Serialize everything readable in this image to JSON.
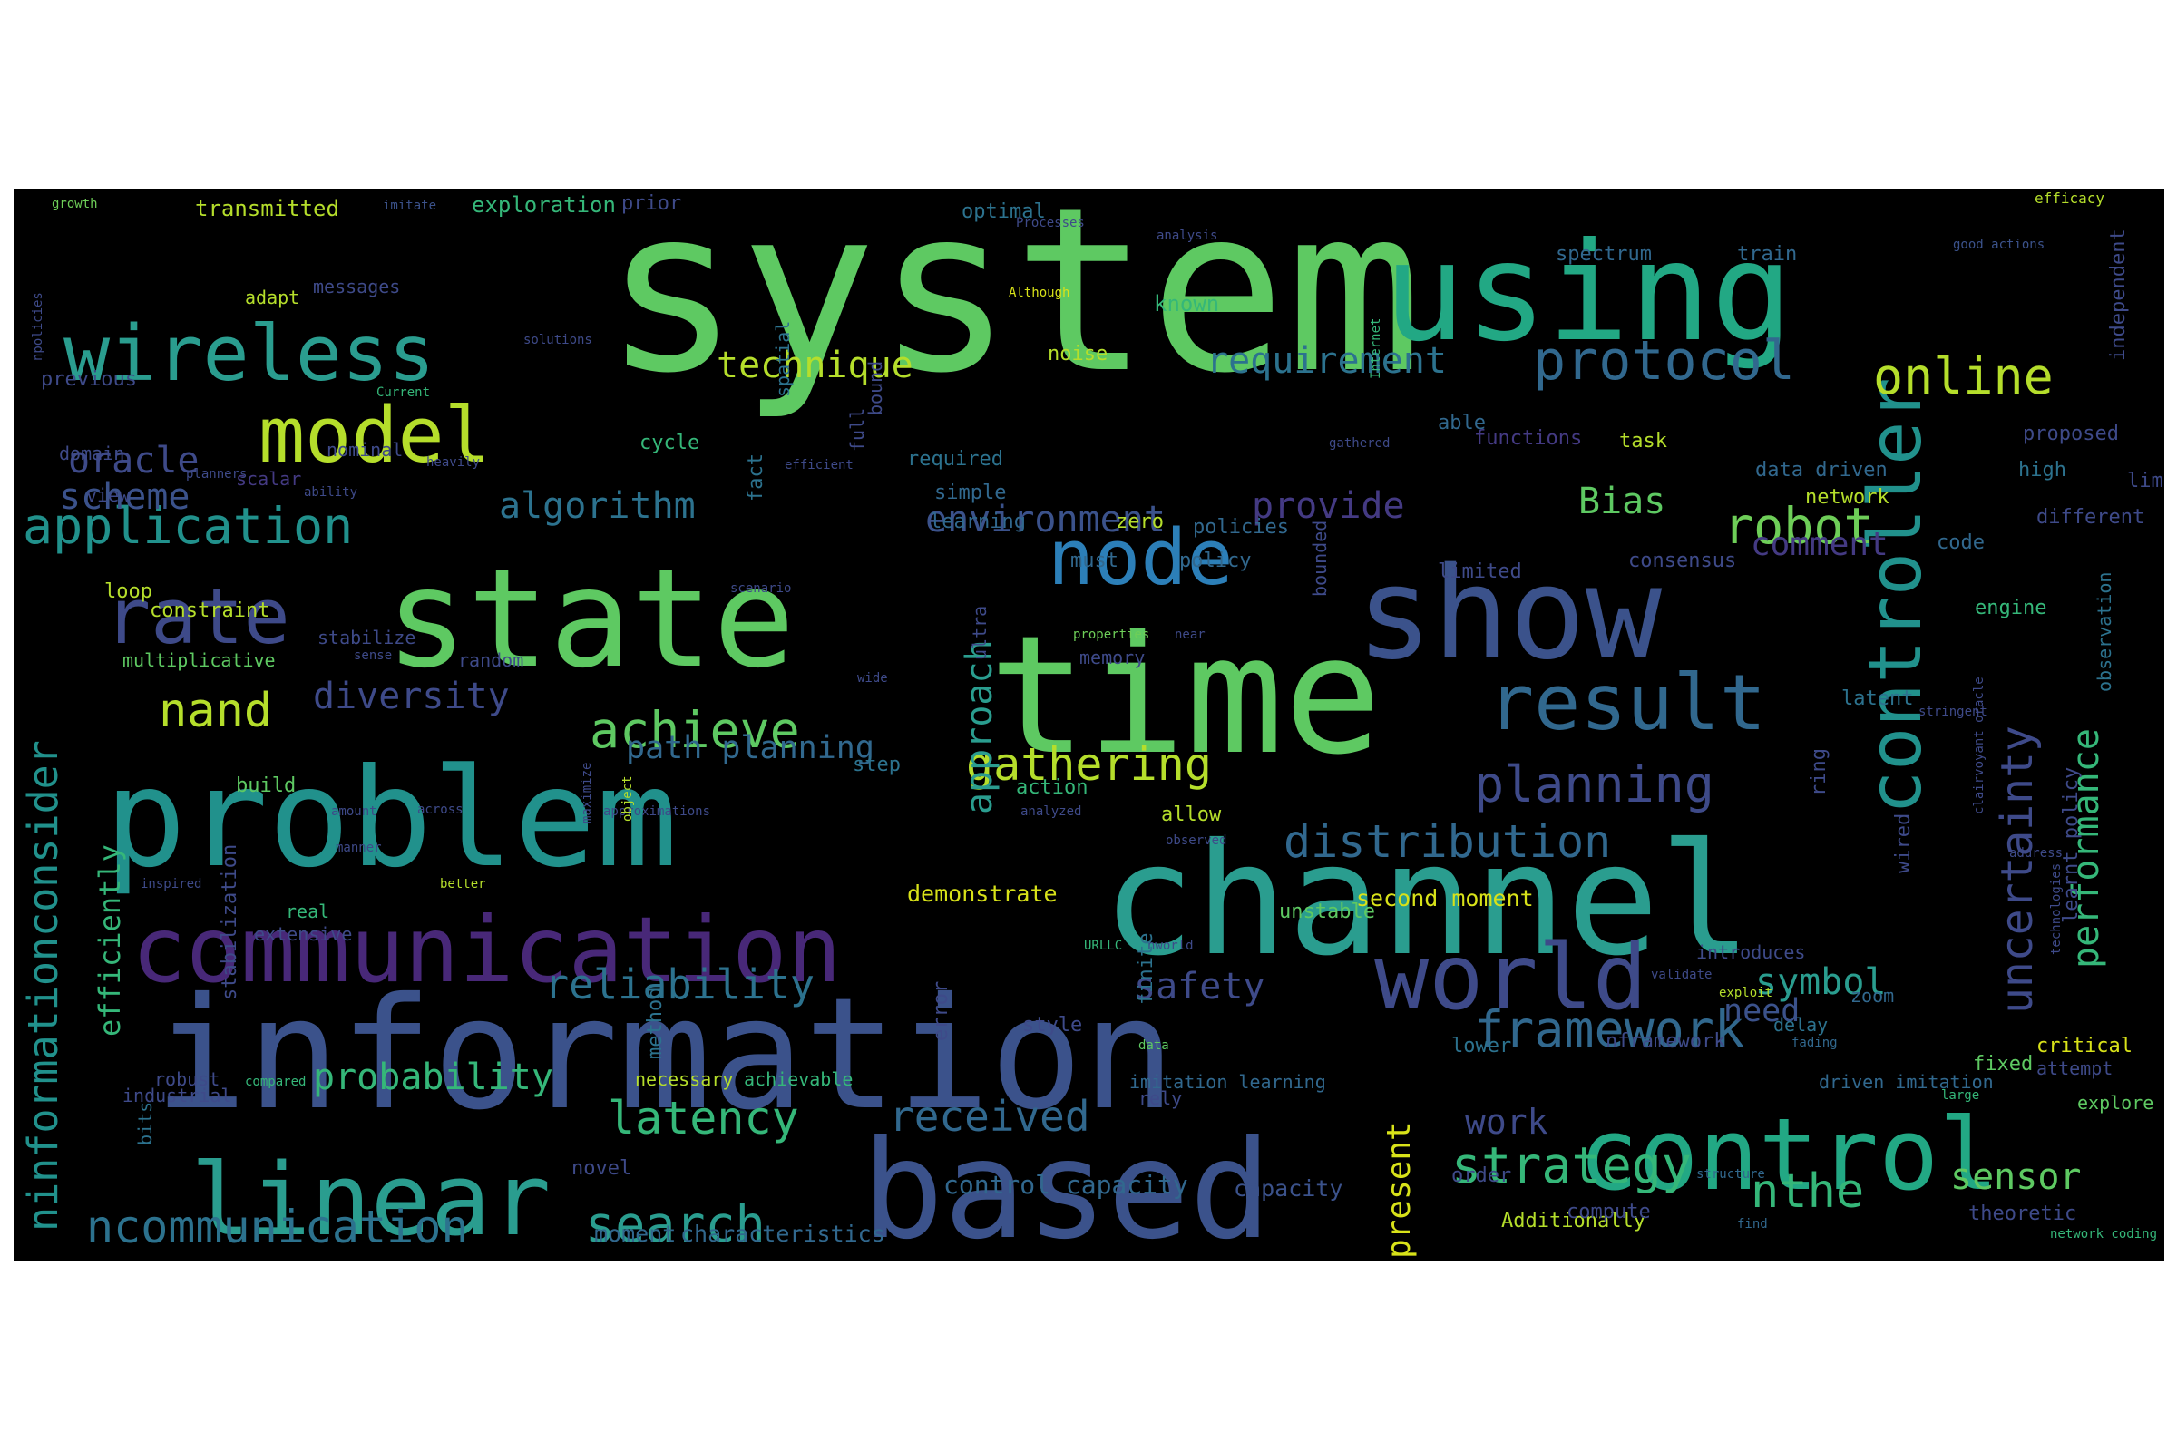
{
  "wordcloud": {
    "words": [
      {
        "text": "system",
        "color": "#5ec962"
      },
      {
        "text": "using",
        "color": "#22a884"
      },
      {
        "text": "information",
        "color": "#3b528b"
      },
      {
        "text": "time",
        "color": "#5ec962"
      },
      {
        "text": "problem",
        "color": "#21918c"
      },
      {
        "text": "channel",
        "color": "#2a9d8f"
      },
      {
        "text": "state",
        "color": "#5ec962"
      },
      {
        "text": "show",
        "color": "#3b528b"
      },
      {
        "text": "based",
        "color": "#3b528b"
      },
      {
        "text": "communication",
        "color": "#482878"
      },
      {
        "text": "linear",
        "color": "#2a9d8f"
      },
      {
        "text": "control",
        "color": "#22a884"
      },
      {
        "text": "world",
        "color": "#3e4a89"
      },
      {
        "text": "model",
        "color": "#b5de2b"
      },
      {
        "text": "wireless",
        "color": "#2a9d8f"
      },
      {
        "text": "rate",
        "color": "#3e4a89"
      },
      {
        "text": "node",
        "color": "#2c7fb8"
      },
      {
        "text": "result",
        "color": "#31688e"
      },
      {
        "text": "controller",
        "color": "#21918c"
      },
      {
        "text": "protocol",
        "color": "#31688e"
      },
      {
        "text": "online",
        "color": "#b5de2b"
      },
      {
        "text": "application",
        "color": "#21918c"
      },
      {
        "text": "planning",
        "color": "#3e4a89"
      },
      {
        "text": "distribution",
        "color": "#31688e"
      },
      {
        "text": "framework",
        "color": "#31688e"
      },
      {
        "text": "strategy",
        "color": "#35b779"
      },
      {
        "text": "achieve",
        "color": "#5ec962"
      },
      {
        "text": "nand",
        "color": "#b5de2b"
      },
      {
        "text": "search",
        "color": "#2a9d8f"
      },
      {
        "text": "latency",
        "color": "#35b779"
      },
      {
        "text": "ncommunication",
        "color": "#2c728e"
      },
      {
        "text": "ninformationconsider",
        "color": "#21918c"
      },
      {
        "text": "uncertainty",
        "color": "#3e4a89"
      },
      {
        "text": "performance",
        "color": "#35b779"
      },
      {
        "text": "received",
        "color": "#31688e"
      },
      {
        "text": "robot",
        "color": "#6ece58"
      },
      {
        "text": "nthe",
        "color": "#35b779"
      },
      {
        "text": "sensor",
        "color": "#5ec962"
      },
      {
        "text": "reliability",
        "color": "#2c728e"
      },
      {
        "text": "probability",
        "color": "#35b779"
      },
      {
        "text": "algorithm",
        "color": "#2c728e"
      },
      {
        "text": "environment",
        "color": "#3b528b"
      },
      {
        "text": "provide",
        "color": "#443a83"
      },
      {
        "text": "Bias",
        "color": "#5ec962"
      },
      {
        "text": "requirement",
        "color": "#2c728e"
      },
      {
        "text": "technique",
        "color": "#b5de2b"
      },
      {
        "text": "oracle",
        "color": "#3e4a89"
      },
      {
        "text": "scheme",
        "color": "#3b528b"
      },
      {
        "text": "diversity",
        "color": "#3e4a89"
      },
      {
        "text": "gathering",
        "color": "#b5de2b"
      },
      {
        "text": "approach",
        "color": "#2a9d8f"
      },
      {
        "text": "path planning",
        "color": "#31688e"
      },
      {
        "text": "safety",
        "color": "#3e4a89"
      },
      {
        "text": "symbol",
        "color": "#2a9d8f"
      },
      {
        "text": "need",
        "color": "#3b528b"
      },
      {
        "text": "work",
        "color": "#3e4a89"
      },
      {
        "text": "present",
        "color": "#d8e219"
      },
      {
        "text": "efficiently",
        "color": "#35b779"
      },
      {
        "text": "comment",
        "color": "#443a83"
      },
      {
        "text": "second moment",
        "color": "#d8e219"
      },
      {
        "text": "demonstrate",
        "color": "#d8e219"
      },
      {
        "text": "control capacity",
        "color": "#31688e"
      },
      {
        "text": "capacity",
        "color": "#3b528b"
      },
      {
        "text": "moment",
        "color": "#31688e"
      },
      {
        "text": "characteristics",
        "color": "#31688e"
      },
      {
        "text": "transmitted",
        "color": "#b5de2b"
      },
      {
        "text": "exploration",
        "color": "#35b779"
      },
      {
        "text": "prior",
        "color": "#3e4a89"
      },
      {
        "text": "optimal",
        "color": "#2c728e"
      },
      {
        "text": "spectrum",
        "color": "#31688e"
      },
      {
        "text": "train",
        "color": "#31688e"
      },
      {
        "text": "efficacy",
        "color": "#b5de2b"
      },
      {
        "text": "growth",
        "color": "#6ece58"
      },
      {
        "text": "imitate",
        "color": "#3b528b"
      },
      {
        "text": "Processes",
        "color": "#3e4a89"
      },
      {
        "text": "analysis",
        "color": "#3e4a89"
      },
      {
        "text": "good actions",
        "color": "#3b528b"
      },
      {
        "text": "adapt",
        "color": "#b5de2b"
      },
      {
        "text": "messages",
        "color": "#3e4a89"
      },
      {
        "text": "Although",
        "color": "#d8e219"
      },
      {
        "text": "known",
        "color": "#35b779"
      },
      {
        "text": "independent",
        "color": "#3e4a89"
      },
      {
        "text": "solutions",
        "color": "#3e4a89"
      },
      {
        "text": "noise",
        "color": "#b5de2b"
      },
      {
        "text": "previous",
        "color": "#3e4a89"
      },
      {
        "text": "Current",
        "color": "#35b779"
      },
      {
        "text": "nominal",
        "color": "#3e4a89"
      },
      {
        "text": "heavily",
        "color": "#3e4a89"
      },
      {
        "text": "domain",
        "color": "#3e4a89"
      },
      {
        "text": "cycle",
        "color": "#35b779"
      },
      {
        "text": "efficient",
        "color": "#3e4a89"
      },
      {
        "text": "required",
        "color": "#2c728e"
      },
      {
        "text": "gathered",
        "color": "#3e4a89"
      },
      {
        "text": "able",
        "color": "#31688e"
      },
      {
        "text": "functions",
        "color": "#443a83"
      },
      {
        "text": "task",
        "color": "#b5de2b"
      },
      {
        "text": "proposed",
        "color": "#3e4a89"
      },
      {
        "text": "data driven",
        "color": "#31688e"
      },
      {
        "text": "high",
        "color": "#2c728e"
      },
      {
        "text": "limit",
        "color": "#3e4a89"
      },
      {
        "text": "network",
        "color": "#b5de2b"
      },
      {
        "text": "different",
        "color": "#3e4a89"
      },
      {
        "text": "planners",
        "color": "#3e4a89"
      },
      {
        "text": "scalar",
        "color": "#443a83"
      },
      {
        "text": "ability",
        "color": "#3e4a89"
      },
      {
        "text": "view",
        "color": "#3e4a89"
      },
      {
        "text": "simple",
        "color": "#31688e"
      },
      {
        "text": "learning",
        "color": "#31688e"
      },
      {
        "text": "zero",
        "color": "#b5de2b"
      },
      {
        "text": "policies",
        "color": "#31688e"
      },
      {
        "text": "code",
        "color": "#31688e"
      },
      {
        "text": "must",
        "color": "#31688e"
      },
      {
        "text": "policy",
        "color": "#31688e"
      },
      {
        "text": "limited",
        "color": "#3e4a89"
      },
      {
        "text": "consensus",
        "color": "#3e4a89"
      },
      {
        "text": "loop",
        "color": "#b5de2b"
      },
      {
        "text": "constraint",
        "color": "#b5de2b"
      },
      {
        "text": "scenario",
        "color": "#3e4a89"
      },
      {
        "text": "engine",
        "color": "#35b779"
      },
      {
        "text": "stabilize",
        "color": "#3e4a89"
      },
      {
        "text": "properties",
        "color": "#6ece58"
      },
      {
        "text": "near",
        "color": "#3e4a89"
      },
      {
        "text": "memory",
        "color": "#3e4a89"
      },
      {
        "text": "multiplicative",
        "color": "#5ec962"
      },
      {
        "text": "random",
        "color": "#3e4a89"
      },
      {
        "text": "sense",
        "color": "#3e4a89"
      },
      {
        "text": "wide",
        "color": "#3e4a89"
      },
      {
        "text": "latent",
        "color": "#2c728e"
      },
      {
        "text": "stringent",
        "color": "#3e4a89"
      },
      {
        "text": "step",
        "color": "#2c728e"
      },
      {
        "text": "action",
        "color": "#35b779"
      },
      {
        "text": "build",
        "color": "#5ec962"
      },
      {
        "text": "amount",
        "color": "#3e4a89"
      },
      {
        "text": "across",
        "color": "#3e4a89"
      },
      {
        "text": "approximations",
        "color": "#3e4a89"
      },
      {
        "text": "analyzed",
        "color": "#3e4a89"
      },
      {
        "text": "allow",
        "color": "#b5de2b"
      },
      {
        "text": "observed",
        "color": "#3e4a89"
      },
      {
        "text": "manner",
        "color": "#3e4a89"
      },
      {
        "text": "address",
        "color": "#3e4a89"
      },
      {
        "text": "technologies",
        "color": "#3e4a89"
      },
      {
        "text": "inspired",
        "color": "#3e4a89"
      },
      {
        "text": "better",
        "color": "#b5de2b"
      },
      {
        "text": "real",
        "color": "#35b779"
      },
      {
        "text": "unstable",
        "color": "#5ec962"
      },
      {
        "text": "extensive",
        "color": "#3e4a89"
      },
      {
        "text": "nworld",
        "color": "#3e4a89"
      },
      {
        "text": "URLLC",
        "color": "#35b779"
      },
      {
        "text": "introduces",
        "color": "#3e4a89"
      },
      {
        "text": "validate",
        "color": "#3e4a89"
      },
      {
        "text": "exploit",
        "color": "#b5de2b"
      },
      {
        "text": "zoom",
        "color": "#31688e"
      },
      {
        "text": "delay",
        "color": "#2c728e"
      },
      {
        "text": "style",
        "color": "#3e4a89"
      },
      {
        "text": "nframework",
        "color": "#3e4a89"
      },
      {
        "text": "fading",
        "color": "#31688e"
      },
      {
        "text": "data",
        "color": "#5ec962"
      },
      {
        "text": "lower",
        "color": "#2c728e"
      },
      {
        "text": "critical",
        "color": "#d8e219"
      },
      {
        "text": "fixed",
        "color": "#5ec962"
      },
      {
        "text": "attempt",
        "color": "#3e4a89"
      },
      {
        "text": "robust",
        "color": "#3e4a89"
      },
      {
        "text": "compared",
        "color": "#35b779"
      },
      {
        "text": "necessary",
        "color": "#b5de2b"
      },
      {
        "text": "achievable",
        "color": "#35b779"
      },
      {
        "text": "imitation learning",
        "color": "#31688e"
      },
      {
        "text": "rely",
        "color": "#3e4a89"
      },
      {
        "text": "driven imitation",
        "color": "#31688e"
      },
      {
        "text": "large",
        "color": "#35b779"
      },
      {
        "text": "industrial",
        "color": "#3e4a89"
      },
      {
        "text": "explore",
        "color": "#5ec962"
      },
      {
        "text": "novel",
        "color": "#3e4a89"
      },
      {
        "text": "order",
        "color": "#3e4a89"
      },
      {
        "text": "structure",
        "color": "#31688e"
      },
      {
        "text": "Additionally",
        "color": "#b5de2b"
      },
      {
        "text": "compute",
        "color": "#3e4a89"
      },
      {
        "text": "find",
        "color": "#31688e"
      },
      {
        "text": "theoretic",
        "color": "#3e4a89"
      },
      {
        "text": "network coding",
        "color": "#35b779"
      },
      {
        "text": "npolicies",
        "color": "#3e4a89"
      },
      {
        "text": "fact",
        "color": "#2c728e"
      },
      {
        "text": "spatial",
        "color": "#2c728e"
      },
      {
        "text": "bound",
        "color": "#3e4a89"
      },
      {
        "text": "full",
        "color": "#3e4a89"
      },
      {
        "text": "Internet",
        "color": "#35b779"
      },
      {
        "text": "bounded",
        "color": "#3e4a89"
      },
      {
        "text": "ultra",
        "color": "#3e4a89"
      },
      {
        "text": "maximize",
        "color": "#3e4a89"
      },
      {
        "text": "object",
        "color": "#b5de2b"
      },
      {
        "text": "stabilization",
        "color": "#3e4a89"
      },
      {
        "text": "bits",
        "color": "#2c728e"
      },
      {
        "text": "method",
        "color": "#2c728e"
      },
      {
        "text": "error",
        "color": "#3e4a89"
      },
      {
        "text": "finite",
        "color": "#2c728e"
      },
      {
        "text": "ring",
        "color": "#3e4a89"
      },
      {
        "text": "wired",
        "color": "#3e4a89"
      },
      {
        "text": "clairvoyant oracle",
        "color": "#3e4a89"
      },
      {
        "text": "learnt policy",
        "color": "#3e4a89"
      },
      {
        "text": "observation",
        "color": "#2c728e"
      }
    ]
  }
}
